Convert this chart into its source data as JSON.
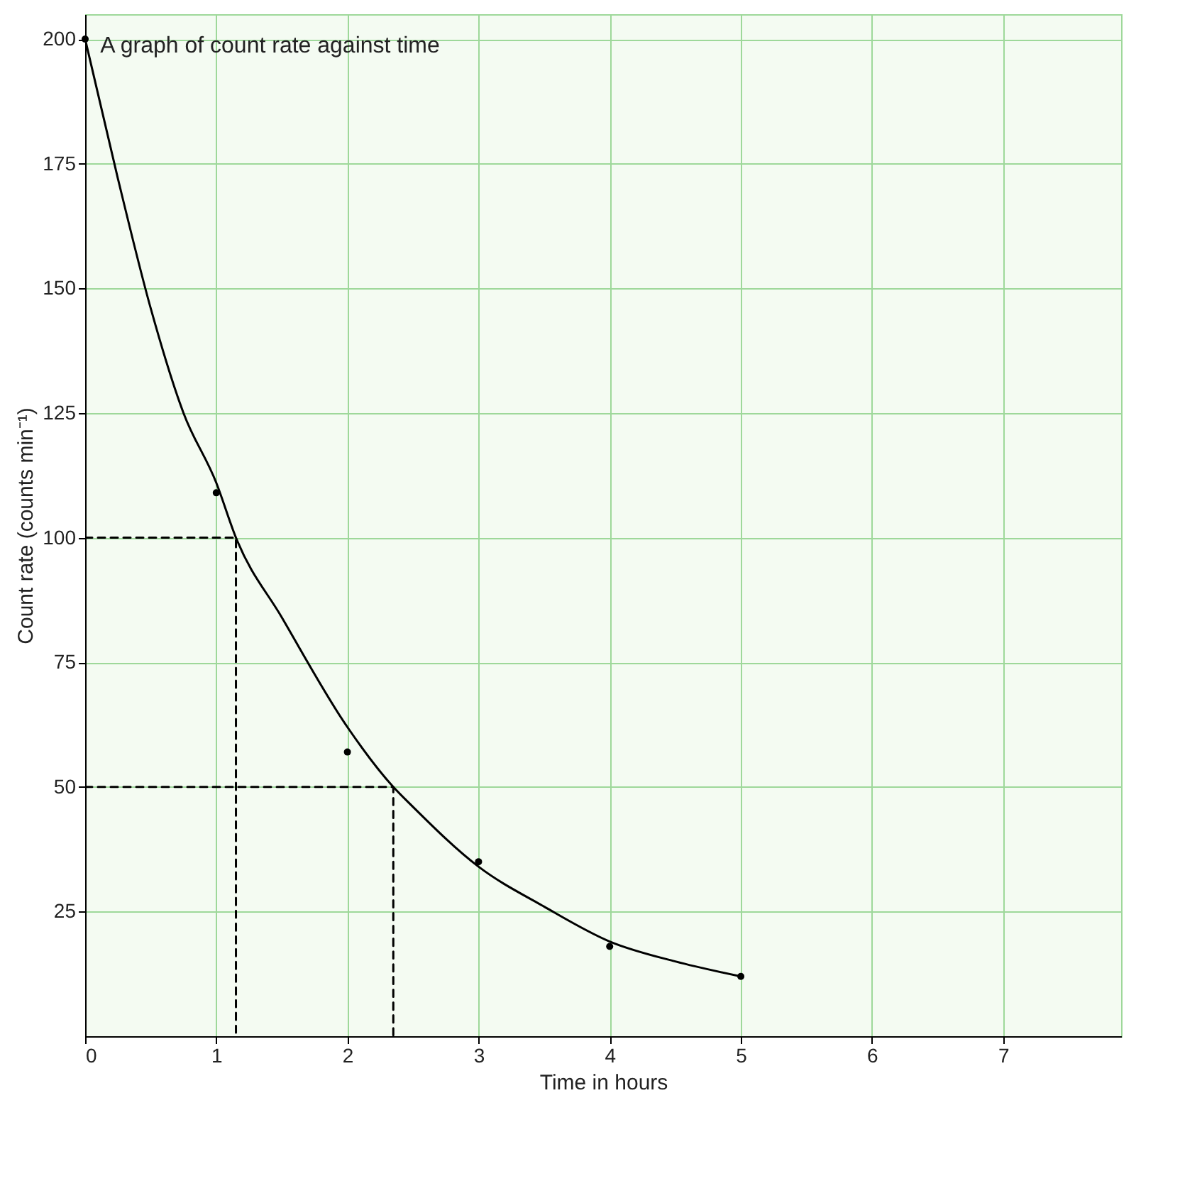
{
  "chart_data": {
    "type": "scatter",
    "title": "A graph of count rate against time",
    "xlabel": "Time in hours",
    "ylabel": "Count rate (counts min⁻¹)",
    "xlim": [
      0,
      7.9
    ],
    "ylim": [
      0,
      205
    ],
    "xticks": [
      0,
      1,
      2,
      3,
      4,
      5,
      6,
      7
    ],
    "yticks": [
      25,
      50,
      75,
      100,
      125,
      150,
      175,
      200
    ],
    "grid": true,
    "series": [
      {
        "color": "#000000",
        "marker": "circle",
        "x": [
          0,
          1,
          2,
          3,
          4,
          5
        ],
        "values": [
          200,
          109,
          57,
          35,
          18,
          12
        ]
      },
      {
        "type": "line",
        "color": "#000000",
        "marker": "none",
        "x": [
          0,
          0.25,
          0.5,
          0.75,
          1,
          1.15,
          1.5,
          2,
          2.35,
          2.5,
          3,
          3.5,
          4,
          4.5,
          5
        ],
        "values": [
          200,
          172,
          146,
          125,
          111,
          100,
          84,
          62,
          50,
          46,
          34,
          26,
          19,
          15,
          12
        ]
      },
      {
        "type": "line",
        "color": "#000000",
        "marker": "none",
        "line_style": "dashed",
        "x": [
          0,
          1.15,
          1.15
        ],
        "values": [
          100,
          100,
          0
        ]
      },
      {
        "type": "line",
        "color": "#000000",
        "marker": "none",
        "line_style": "dashed",
        "x": [
          0,
          2.35,
          2.35
        ],
        "values": [
          50,
          50,
          0
        ]
      }
    ]
  }
}
